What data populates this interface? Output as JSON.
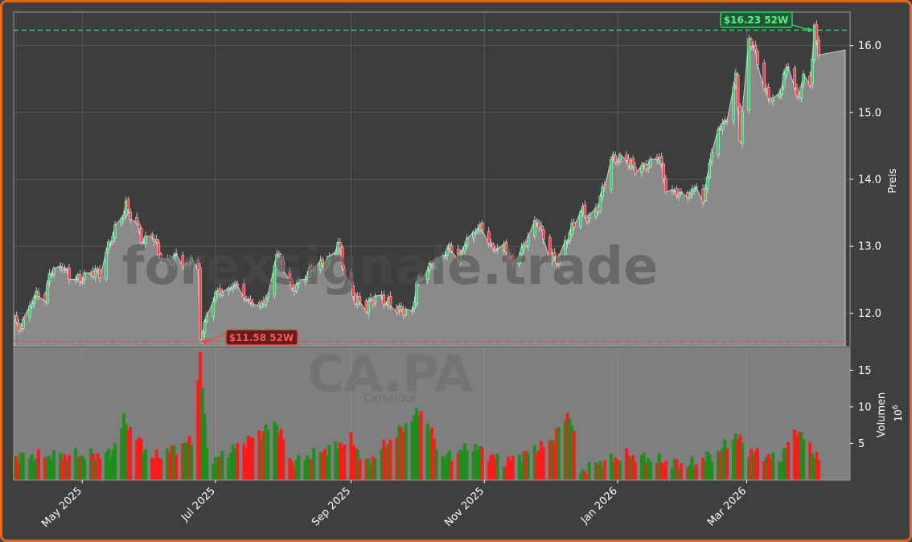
{
  "chart_data": {
    "type": "candlestick",
    "ticker": "CA.PA",
    "company": "Carrefour",
    "watermark": "forexsignale.trade",
    "currency_symbol": "$",
    "price_axis": {
      "label": "Preis",
      "ylim": [
        11.5,
        16.5
      ],
      "ticks": [
        12.0,
        13.0,
        14.0,
        15.0,
        16.0
      ],
      "tick_labels": [
        "12.0",
        "13.0",
        "14.0",
        "15.0",
        "16.0"
      ]
    },
    "volume_axis": {
      "label": "Volumen",
      "unit": "10^6",
      "unit_base": "10",
      "unit_exp": "6",
      "ylim": [
        0,
        18
      ],
      "ticks": [
        5,
        10,
        15
      ],
      "tick_labels": [
        "5",
        "10",
        "15"
      ]
    },
    "x_axis": {
      "range": [
        "2025-03-31",
        "2026-04-07"
      ],
      "ticks": [
        "2025-05-01",
        "2025-07-01",
        "2025-09-01",
        "2025-11-01",
        "2026-01-01",
        "2026-03-01"
      ],
      "tick_labels": [
        "May 2025",
        "Jul 2025",
        "Sep 2025",
        "Nov 2025",
        "Jan 2026",
        "Mar 2026"
      ]
    },
    "high_52w": {
      "value": 16.23,
      "date": "2026-04-01",
      "label": "$16.23 52W"
    },
    "low_52w": {
      "value": 11.58,
      "date": "2025-06-24",
      "label": "$11.58 52W"
    },
    "last_close": 15.93,
    "price_anchors": [
      [
        "2025-03-31",
        11.95
      ],
      [
        "2025-04-02",
        11.75
      ],
      [
        "2025-04-07",
        12.1
      ],
      [
        "2025-04-10",
        12.3
      ],
      [
        "2025-04-14",
        12.2
      ],
      [
        "2025-04-16",
        12.6
      ],
      [
        "2025-04-22",
        12.7
      ],
      [
        "2025-04-25",
        12.55
      ],
      [
        "2025-04-30",
        12.5
      ],
      [
        "2025-05-06",
        12.62
      ],
      [
        "2025-05-09",
        12.6
      ],
      [
        "2025-05-14",
        13.1
      ],
      [
        "2025-05-19",
        13.45
      ],
      [
        "2025-05-21",
        13.6
      ],
      [
        "2025-05-26",
        13.3
      ],
      [
        "2025-05-29",
        13.05
      ],
      [
        "2025-06-02",
        13.2
      ],
      [
        "2025-06-05",
        12.9
      ],
      [
        "2025-06-09",
        12.75
      ],
      [
        "2025-06-13",
        12.85
      ],
      [
        "2025-06-18",
        12.7
      ],
      [
        "2025-06-20",
        12.85
      ],
      [
        "2025-06-23",
        12.6
      ],
      [
        "2025-06-24",
        11.62
      ],
      [
        "2025-06-27",
        11.95
      ],
      [
        "2025-07-01",
        12.3
      ],
      [
        "2025-07-07",
        12.35
      ],
      [
        "2025-07-10",
        12.45
      ],
      [
        "2025-07-15",
        12.2
      ],
      [
        "2025-07-21",
        12.1
      ],
      [
        "2025-07-25",
        12.25
      ],
      [
        "2025-07-29",
        12.9
      ],
      [
        "2025-08-01",
        12.7
      ],
      [
        "2025-08-05",
        12.35
      ],
      [
        "2025-08-11",
        12.55
      ],
      [
        "2025-08-15",
        12.7
      ],
      [
        "2025-08-21",
        12.75
      ],
      [
        "2025-08-26",
        13.05
      ],
      [
        "2025-08-29",
        12.6
      ],
      [
        "2025-09-03",
        12.2
      ],
      [
        "2025-09-08",
        12.1
      ],
      [
        "2025-09-12",
        12.25
      ],
      [
        "2025-09-18",
        12.15
      ],
      [
        "2025-09-23",
        12.05
      ],
      [
        "2025-09-29",
        12.0
      ],
      [
        "2025-10-01",
        12.45
      ],
      [
        "2025-10-07",
        12.7
      ],
      [
        "2025-10-13",
        12.85
      ],
      [
        "2025-10-16",
        13.0
      ],
      [
        "2025-10-20",
        12.8
      ],
      [
        "2025-10-24",
        13.1
      ],
      [
        "2025-10-30",
        13.3
      ],
      [
        "2025-11-05",
        12.95
      ],
      [
        "2025-11-10",
        13.0
      ],
      [
        "2025-11-14",
        12.75
      ],
      [
        "2025-11-19",
        13.0
      ],
      [
        "2025-11-25",
        13.4
      ],
      [
        "2025-12-01",
        12.85
      ],
      [
        "2025-12-05",
        12.8
      ],
      [
        "2025-12-10",
        13.2
      ],
      [
        "2025-12-15",
        13.55
      ],
      [
        "2025-12-19",
        13.4
      ],
      [
        "2025-12-23",
        13.6
      ],
      [
        "2025-12-29",
        14.3
      ],
      [
        "2026-01-05",
        14.3
      ],
      [
        "2026-01-09",
        14.15
      ],
      [
        "2026-01-14",
        14.2
      ],
      [
        "2026-01-20",
        14.35
      ],
      [
        "2026-01-23",
        13.85
      ],
      [
        "2026-01-28",
        13.8
      ],
      [
        "2026-02-02",
        13.75
      ],
      [
        "2026-02-06",
        13.9
      ],
      [
        "2026-02-09",
        13.65
      ],
      [
        "2026-02-12",
        14.25
      ],
      [
        "2026-02-16",
        14.75
      ],
      [
        "2026-02-20",
        14.9
      ],
      [
        "2026-02-24",
        15.55
      ],
      [
        "2026-02-26",
        14.6
      ],
      [
        "2026-03-02",
        16.1
      ],
      [
        "2026-03-05",
        15.9
      ],
      [
        "2026-03-09",
        15.35
      ],
      [
        "2026-03-13",
        15.15
      ],
      [
        "2026-03-16",
        15.3
      ],
      [
        "2026-03-20",
        15.75
      ],
      [
        "2026-03-24",
        15.2
      ],
      [
        "2026-03-27",
        15.5
      ],
      [
        "2026-03-30",
        15.45
      ],
      [
        "2026-04-01",
        16.23
      ],
      [
        "2026-04-03",
        15.93
      ]
    ],
    "volume_anchors": [
      [
        "2025-03-31",
        3.2
      ],
      [
        "2025-05-14",
        3.5
      ],
      [
        "2025-05-20",
        8.2
      ],
      [
        "2025-06-02",
        3.0
      ],
      [
        "2025-06-20",
        5.4
      ],
      [
        "2025-06-24",
        17.0
      ],
      [
        "2025-06-27",
        4.3
      ],
      [
        "2025-07-01",
        2.8
      ],
      [
        "2025-07-29",
        7.8
      ],
      [
        "2025-08-05",
        2.3
      ],
      [
        "2025-09-01",
        5.5
      ],
      [
        "2025-09-08",
        2.2
      ],
      [
        "2025-10-03",
        9.6
      ],
      [
        "2025-10-13",
        3.0
      ],
      [
        "2025-10-27",
        4.7
      ],
      [
        "2025-11-10",
        2.4
      ],
      [
        "2025-12-01",
        5.1
      ],
      [
        "2025-12-10",
        9.2
      ],
      [
        "2025-12-15",
        1.1
      ],
      [
        "2025-12-22",
        2.2
      ],
      [
        "2026-01-05",
        3.4
      ],
      [
        "2026-02-02",
        2.0
      ],
      [
        "2026-02-16",
        3.8
      ],
      [
        "2026-02-24",
        6.1
      ],
      [
        "2026-03-02",
        4.0
      ],
      [
        "2026-03-16",
        2.8
      ],
      [
        "2026-03-24",
        7.0
      ],
      [
        "2026-04-03",
        2.8
      ]
    ],
    "candle_count": 266
  }
}
